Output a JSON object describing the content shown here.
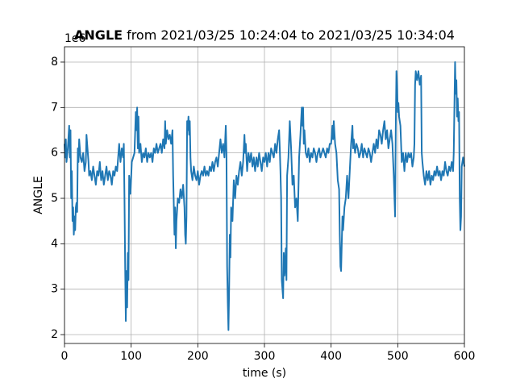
{
  "chart_data": {
    "type": "line",
    "title_bold": "ANGLE",
    "title": "from 2021/03/25 10:24:04 to 2021/03/25 10:34:04",
    "x_label": "time (s)",
    "y_label": "ANGLE",
    "y_offset_label": "1e6",
    "color": "#1f77b4",
    "grid": true,
    "xlim": [
      0,
      600
    ],
    "xticks": [
      0,
      100,
      200,
      300,
      400,
      500,
      600
    ],
    "ylim": [
      1.805,
      8.337
    ],
    "yticks": [
      2,
      3,
      4,
      5,
      6,
      7,
      8
    ],
    "x": [
      0,
      1,
      2,
      3,
      5,
      7,
      8,
      9,
      10,
      11,
      12,
      13,
      14,
      15,
      16,
      17,
      18,
      19,
      20,
      21,
      22,
      24,
      26,
      28,
      30,
      32,
      33,
      34,
      36,
      37,
      39,
      41,
      43,
      45,
      47,
      49,
      51,
      53,
      55,
      57,
      59,
      61,
      63,
      65,
      67,
      69,
      71,
      73,
      75,
      77,
      79,
      81,
      82,
      84,
      86,
      88,
      89,
      90,
      91,
      92,
      93,
      94,
      95,
      96,
      97,
      99,
      101,
      103,
      105,
      107,
      108,
      109,
      110,
      111,
      112,
      114,
      116,
      118,
      120,
      122,
      124,
      126,
      128,
      130,
      132,
      134,
      136,
      138,
      140,
      142,
      144,
      146,
      148,
      150,
      151,
      152,
      154,
      156,
      158,
      160,
      162,
      163,
      165,
      166,
      167,
      168,
      170,
      172,
      174,
      176,
      178,
      180,
      181,
      182,
      183,
      184,
      185,
      186,
      187,
      188,
      189,
      190,
      192,
      194,
      196,
      198,
      200,
      202,
      204,
      206,
      208,
      210,
      212,
      214,
      216,
      218,
      220,
      222,
      224,
      226,
      228,
      230,
      232,
      234,
      236,
      238,
      240,
      242,
      243,
      244,
      245,
      246,
      247,
      248,
      249,
      250,
      252,
      254,
      256,
      258,
      260,
      262,
      264,
      266,
      268,
      270,
      271,
      272,
      274,
      276,
      278,
      280,
      282,
      284,
      286,
      288,
      290,
      292,
      294,
      296,
      298,
      300,
      302,
      304,
      306,
      308,
      310,
      312,
      314,
      316,
      318,
      320,
      322,
      323,
      324,
      325,
      326,
      327,
      328,
      329,
      330,
      331,
      332,
      333,
      334,
      336,
      338,
      340,
      342,
      344,
      346,
      348,
      350,
      352,
      354,
      356,
      357,
      358,
      359,
      360,
      362,
      364,
      366,
      368,
      370,
      372,
      374,
      376,
      378,
      380,
      382,
      384,
      386,
      388,
      390,
      392,
      394,
      396,
      398,
      400,
      402,
      403,
      404,
      406,
      408,
      410,
      412,
      413,
      414,
      415,
      416,
      417,
      418,
      420,
      422,
      424,
      426,
      428,
      430,
      432,
      433,
      434,
      436,
      438,
      440,
      442,
      444,
      446,
      448,
      450,
      452,
      454,
      456,
      458,
      460,
      462,
      464,
      466,
      468,
      470,
      472,
      474,
      476,
      478,
      480,
      482,
      484,
      486,
      488,
      490,
      492,
      494,
      496,
      497,
      498,
      499,
      500,
      501,
      502,
      504,
      506,
      508,
      510,
      512,
      514,
      516,
      518,
      520,
      522,
      524,
      525,
      526,
      527,
      529,
      531,
      533,
      535,
      536,
      537,
      539,
      541,
      543,
      545,
      547,
      549,
      551,
      553,
      555,
      557,
      559,
      561,
      563,
      565,
      567,
      569,
      571,
      573,
      575,
      577,
      579,
      581,
      583,
      584,
      585,
      586,
      587,
      588,
      589,
      590,
      591,
      592,
      593,
      594,
      595,
      596,
      598,
      600
    ],
    "values": [
      6.2,
      5.9,
      6.3,
      5.8,
      6.1,
      6.6,
      5.9,
      6.5,
      5.0,
      5.6,
      4.5,
      4.8,
      4.2,
      4.6,
      4.3,
      4.8,
      4.9,
      4.7,
      6.1,
      5.8,
      6.3,
      5.9,
      5.8,
      6.0,
      5.6,
      5.8,
      6.4,
      6.2,
      5.8,
      5.5,
      5.6,
      5.4,
      5.7,
      5.5,
      5.3,
      5.6,
      5.5,
      5.8,
      5.4,
      5.6,
      5.3,
      5.5,
      5.7,
      5.4,
      5.6,
      5.5,
      5.3,
      5.6,
      5.5,
      5.7,
      5.6,
      6.0,
      6.2,
      5.8,
      6.1,
      5.9,
      6.2,
      5.0,
      3.5,
      2.3,
      3.4,
      2.6,
      3.8,
      3.2,
      5.5,
      5.1,
      5.8,
      5.9,
      6.0,
      6.9,
      6.5,
      7.0,
      6.1,
      6.8,
      6.0,
      6.2,
      5.8,
      6.0,
      5.9,
      6.1,
      5.8,
      6.0,
      5.9,
      6.0,
      5.8,
      6.1,
      6.0,
      6.2,
      6.0,
      6.1,
      6.2,
      6.0,
      6.3,
      6.1,
      6.7,
      6.2,
      6.5,
      6.3,
      6.4,
      6.2,
      6.5,
      5.5,
      4.2,
      4.8,
      3.9,
      4.5,
      5.0,
      4.9,
      5.2,
      5.0,
      5.3,
      4.8,
      4.2,
      4.0,
      4.6,
      6.7,
      6.5,
      6.8,
      6.4,
      6.7,
      5.9,
      5.6,
      5.4,
      5.7,
      5.5,
      5.4,
      5.6,
      5.3,
      5.5,
      5.6,
      5.5,
      5.7,
      5.5,
      5.6,
      5.5,
      5.7,
      5.6,
      5.8,
      5.6,
      5.8,
      5.9,
      5.7,
      6.0,
      6.3,
      6.0,
      6.2,
      5.9,
      6.6,
      6.0,
      3.5,
      2.7,
      2.1,
      3.0,
      4.2,
      3.7,
      4.8,
      4.5,
      5.4,
      5.0,
      5.5,
      5.3,
      5.6,
      5.8,
      5.5,
      5.8,
      6.4,
      6.0,
      6.2,
      5.6,
      6.0,
      5.8,
      6.0,
      5.7,
      5.9,
      5.6,
      5.9,
      5.7,
      6.0,
      5.8,
      5.6,
      5.9,
      5.8,
      6.0,
      5.7,
      6.0,
      5.8,
      6.1,
      6.0,
      5.9,
      6.2,
      6.0,
      6.3,
      6.5,
      6.1,
      5.6,
      5.0,
      3.2,
      3.0,
      2.8,
      3.8,
      3.3,
      3.5,
      3.9,
      3.2,
      5.5,
      5.9,
      6.7,
      6.1,
      5.3,
      5.5,
      4.8,
      5.0,
      4.5,
      5.9,
      6.4,
      7.0,
      6.6,
      7.0,
      6.2,
      6.5,
      6.0,
      5.9,
      6.1,
      5.8,
      6.0,
      5.9,
      6.1,
      6.0,
      5.8,
      6.0,
      6.1,
      5.9,
      6.0,
      6.1,
      6.0,
      5.9,
      6.1,
      6.0,
      6.2,
      6.2,
      6.6,
      6.3,
      6.7,
      6.2,
      6.0,
      5.4,
      5.2,
      4.2,
      3.5,
      3.4,
      4.0,
      4.6,
      4.3,
      4.8,
      5.0,
      5.5,
      5.0,
      5.6,
      6.2,
      6.6,
      6.1,
      6.3,
      6.0,
      6.2,
      6.1,
      5.9,
      6.0,
      6.2,
      5.9,
      6.1,
      6.0,
      5.9,
      6.1,
      6.0,
      5.8,
      6.0,
      6.2,
      6.0,
      6.3,
      6.1,
      6.5,
      6.4,
      6.2,
      6.5,
      6.7,
      6.3,
      6.5,
      6.1,
      6.3,
      6.5,
      6.2,
      5.5,
      4.6,
      6.5,
      7.8,
      7.5,
      6.9,
      7.1,
      6.8,
      6.6,
      5.8,
      6.0,
      5.6,
      6.0,
      5.8,
      6.0,
      5.9,
      6.0,
      5.7,
      5.9,
      6.2,
      7.5,
      7.8,
      7.6,
      7.8,
      7.5,
      7.7,
      6.0,
      5.8,
      5.5,
      5.3,
      5.6,
      5.4,
      5.6,
      5.3,
      5.5,
      5.4,
      5.6,
      5.5,
      5.7,
      5.5,
      5.6,
      5.4,
      5.6,
      5.5,
      5.8,
      5.6,
      5.5,
      5.7,
      5.6,
      5.8,
      5.6,
      6.0,
      7.0,
      8.0,
      7.3,
      7.6,
      6.8,
      7.2,
      6.7,
      6.9,
      5.0,
      4.3,
      4.6,
      5.7,
      5.9,
      5.7
    ]
  }
}
